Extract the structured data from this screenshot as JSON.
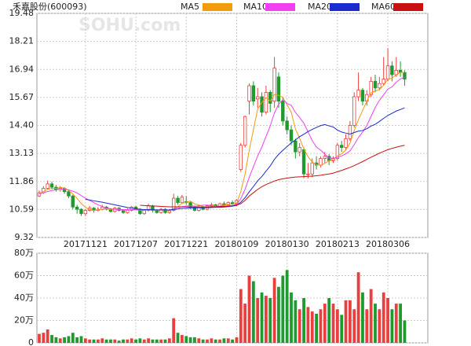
{
  "chart_data": [
    {
      "type": "candlestick",
      "title": "禾嘉股份(600093)",
      "watermark": "SOHU.com",
      "categories": [
        null,
        null,
        null,
        null,
        null,
        null,
        null,
        null,
        null,
        null,
        null,
        "20171121",
        null,
        null,
        null,
        null,
        null,
        null,
        null,
        null,
        null,
        null,
        null,
        "20171207",
        null,
        null,
        null,
        null,
        null,
        null,
        null,
        null,
        null,
        null,
        null,
        "20171221",
        null,
        null,
        null,
        null,
        null,
        null,
        null,
        null,
        null,
        null,
        null,
        "20180109",
        null,
        null,
        null,
        null,
        null,
        null,
        null,
        null,
        null,
        null,
        null,
        "20180130",
        null,
        null,
        null,
        null,
        null,
        null,
        null,
        null,
        null,
        null,
        null,
        "20180213",
        null,
        null,
        null,
        null,
        null,
        null,
        null,
        null,
        null,
        null,
        null,
        "20180306",
        null,
        null,
        null,
        null
      ],
      "open": [
        11.2,
        11.35,
        11.55,
        11.75,
        11.6,
        11.5,
        11.55,
        11.4,
        11.2,
        10.7,
        10.6,
        10.4,
        10.55,
        10.65,
        10.55,
        10.6,
        10.7,
        10.6,
        10.5,
        10.65,
        10.55,
        10.45,
        10.55,
        10.7,
        10.6,
        10.4,
        10.55,
        10.75,
        10.55,
        10.45,
        10.6,
        10.45,
        10.55,
        11.1,
        10.9,
        10.95,
        10.9,
        10.7,
        10.55,
        10.7,
        10.6,
        10.75,
        10.8,
        10.75,
        10.85,
        10.8,
        10.9,
        10.85,
        12.4,
        13.5,
        15.5,
        16.2,
        15.6,
        15.7,
        15.0,
        15.9,
        15.5,
        16.6,
        15.5,
        14.6,
        14.2,
        13.7,
        13.2,
        13.3,
        12.2,
        12.2,
        12.7,
        12.6,
        12.9,
        13.0,
        12.8,
        12.9,
        13.5,
        13.4,
        13.8,
        14.4,
        15.7,
        16.0,
        15.5,
        15.8,
        16.4,
        16.1,
        16.3,
        16.5,
        17.1,
        16.7,
        16.9,
        16.8
      ],
      "high": [
        11.45,
        11.65,
        11.9,
        11.85,
        11.7,
        11.65,
        11.6,
        11.45,
        11.25,
        10.8,
        10.65,
        10.6,
        10.75,
        10.7,
        10.7,
        10.8,
        10.75,
        10.65,
        10.7,
        10.7,
        10.6,
        10.65,
        10.75,
        10.75,
        10.65,
        10.6,
        10.85,
        10.8,
        10.6,
        10.65,
        10.65,
        10.6,
        11.3,
        11.2,
        11.25,
        11.2,
        10.95,
        10.75,
        10.8,
        10.75,
        10.8,
        10.9,
        10.85,
        10.9,
        10.95,
        10.95,
        11.0,
        11.05,
        13.6,
        14.85,
        16.3,
        16.4,
        16.1,
        15.9,
        16.2,
        16.0,
        17.5,
        16.8,
        15.7,
        14.8,
        14.4,
        13.8,
        13.6,
        13.4,
        12.7,
        12.9,
        13.0,
        13.0,
        13.2,
        13.1,
        13.0,
        13.6,
        13.7,
        14.0,
        14.6,
        15.9,
        16.8,
        16.1,
        16.0,
        16.6,
        16.7,
        16.6,
        17.5,
        17.9,
        17.3,
        17.5,
        17.3,
        16.9
      ],
      "low": [
        11.15,
        11.3,
        11.5,
        11.5,
        11.4,
        11.4,
        11.3,
        11.1,
        10.6,
        10.4,
        10.3,
        10.3,
        10.5,
        10.45,
        10.5,
        10.55,
        10.55,
        10.45,
        10.45,
        10.5,
        10.4,
        10.4,
        10.5,
        10.55,
        10.35,
        10.35,
        10.5,
        10.45,
        10.4,
        10.4,
        10.4,
        10.4,
        10.5,
        10.8,
        10.85,
        10.8,
        10.6,
        10.5,
        10.5,
        10.55,
        10.55,
        10.7,
        10.7,
        10.7,
        10.75,
        10.75,
        10.8,
        10.8,
        12.3,
        13.4,
        14.9,
        15.3,
        15.2,
        14.8,
        14.9,
        15.0,
        15.2,
        15.2,
        14.4,
        14.0,
        13.5,
        12.9,
        13.0,
        12.0,
        12.0,
        12.05,
        12.4,
        12.5,
        12.7,
        12.6,
        12.7,
        12.8,
        13.2,
        13.3,
        13.7,
        14.3,
        15.5,
        15.3,
        15.3,
        15.7,
        15.9,
        16.0,
        16.2,
        16.4,
        16.4,
        16.6,
        16.6,
        16.2
      ],
      "close": [
        11.35,
        11.55,
        11.75,
        11.6,
        11.5,
        11.55,
        11.4,
        11.2,
        10.7,
        10.6,
        10.4,
        10.55,
        10.65,
        10.55,
        10.6,
        10.7,
        10.6,
        10.5,
        10.65,
        10.55,
        10.45,
        10.55,
        10.7,
        10.6,
        10.4,
        10.55,
        10.75,
        10.55,
        10.45,
        10.6,
        10.45,
        10.55,
        11.1,
        10.9,
        11.15,
        10.9,
        10.7,
        10.55,
        10.7,
        10.6,
        10.75,
        10.8,
        10.75,
        10.85,
        10.8,
        10.9,
        10.85,
        11.0,
        13.5,
        14.8,
        16.2,
        15.5,
        15.7,
        15.0,
        15.9,
        15.4,
        17.0,
        15.5,
        14.6,
        14.2,
        13.7,
        13.2,
        13.4,
        12.2,
        12.2,
        12.7,
        12.6,
        12.9,
        13.0,
        12.8,
        12.9,
        13.5,
        13.4,
        13.8,
        14.4,
        15.7,
        16.0,
        15.5,
        15.8,
        16.4,
        16.1,
        16.3,
        16.5,
        17.1,
        16.7,
        16.9,
        16.8,
        16.5
      ],
      "up_color": "#e8403f",
      "down_color": "#1e9a2e",
      "series": [
        {
          "name": "MA5",
          "color": "#f29b0c",
          "values": [
            11.3,
            11.4,
            11.5,
            11.55,
            11.55,
            11.59,
            11.56,
            11.45,
            11.29,
            11.09,
            10.86,
            10.69,
            10.58,
            10.55,
            10.56,
            10.61,
            10.62,
            10.59,
            10.61,
            10.6,
            10.56,
            10.55,
            10.58,
            10.57,
            10.55,
            10.56,
            10.6,
            10.57,
            10.54,
            10.58,
            10.56,
            10.52,
            10.63,
            10.72,
            10.87,
            10.92,
            10.97,
            10.84,
            10.8,
            10.71,
            10.66,
            10.68,
            10.72,
            10.75,
            10.79,
            10.82,
            10.83,
            10.88,
            11.41,
            12.19,
            13.27,
            14.2,
            15.14,
            15.44,
            15.66,
            15.5,
            15.8,
            15.76,
            15.68,
            15.34,
            15.0,
            14.24,
            13.82,
            13.34,
            12.98,
            12.74,
            12.62,
            12.6,
            12.68,
            12.8,
            12.84,
            13.02,
            13.12,
            13.28,
            13.6,
            14.16,
            14.66,
            15.08,
            15.5,
            15.88,
            15.96,
            16.02,
            16.22,
            16.48,
            16.54,
            16.7,
            16.8,
            16.8
          ]
        },
        {
          "name": "MA10",
          "color": "#f040f0",
          "values": [
            11.3,
            11.35,
            11.4,
            11.45,
            11.48,
            11.5,
            11.5,
            11.48,
            11.42,
            11.34,
            11.22,
            11.1,
            11.0,
            10.9,
            10.8,
            10.73,
            10.66,
            10.62,
            10.6,
            10.59,
            10.58,
            10.58,
            10.58,
            10.58,
            10.56,
            10.56,
            10.58,
            10.57,
            10.56,
            10.57,
            10.58,
            10.56,
            10.62,
            10.65,
            10.72,
            10.74,
            10.76,
            10.74,
            10.76,
            10.78,
            10.79,
            10.76,
            10.76,
            10.73,
            10.75,
            10.75,
            10.77,
            10.82,
            11.08,
            11.5,
            12.05,
            12.53,
            13.01,
            13.42,
            13.9,
            14.38,
            14.97,
            15.36,
            15.56,
            15.39,
            15.32,
            14.99,
            14.76,
            14.5,
            14.11,
            13.71,
            13.42,
            13.28,
            13.1,
            12.93,
            12.91,
            12.95,
            13.02,
            13.11,
            13.25,
            13.53,
            13.85,
            14.1,
            14.4,
            14.81,
            15.21,
            15.54,
            15.79,
            16.05,
            16.15,
            16.35,
            16.51,
            16.58
          ]
        },
        {
          "name": "MA20",
          "color": "#1a2bd0",
          "values": [
            null,
            null,
            null,
            null,
            null,
            null,
            null,
            null,
            null,
            null,
            null,
            11.05,
            11.02,
            10.98,
            10.95,
            10.92,
            10.88,
            10.84,
            10.8,
            10.76,
            10.72,
            10.68,
            10.65,
            10.62,
            10.6,
            10.58,
            10.58,
            10.58,
            10.57,
            10.57,
            10.57,
            10.57,
            10.59,
            10.61,
            10.64,
            10.65,
            10.66,
            10.66,
            10.67,
            10.67,
            10.68,
            10.68,
            10.69,
            10.69,
            10.7,
            10.72,
            10.74,
            10.77,
            10.92,
            11.12,
            11.39,
            11.63,
            11.89,
            12.08,
            12.33,
            12.56,
            12.86,
            13.09,
            13.27,
            13.44,
            13.61,
            13.74,
            13.89,
            14.0,
            14.12,
            14.22,
            14.31,
            14.39,
            14.44,
            14.38,
            14.33,
            14.19,
            14.1,
            14.05,
            14.01,
            14.08,
            14.14,
            14.17,
            14.25,
            14.37,
            14.45,
            14.58,
            14.72,
            14.85,
            14.95,
            15.05,
            15.12,
            15.2
          ]
        },
        {
          "name": "MA60",
          "color": "#c81010",
          "values": [
            null,
            null,
            null,
            null,
            null,
            null,
            null,
            null,
            null,
            null,
            null,
            null,
            null,
            null,
            null,
            null,
            null,
            null,
            null,
            null,
            null,
            null,
            null,
            null,
            10.78,
            10.77,
            10.76,
            10.75,
            10.74,
            10.73,
            10.72,
            10.71,
            10.71,
            10.71,
            10.71,
            10.71,
            10.7,
            10.7,
            10.7,
            10.7,
            10.7,
            10.71,
            10.71,
            10.72,
            10.73,
            10.74,
            10.76,
            10.79,
            10.85,
            11.0,
            11.2,
            11.35,
            11.5,
            11.62,
            11.72,
            11.8,
            11.88,
            11.94,
            11.98,
            12.01,
            12.04,
            12.06,
            12.07,
            12.08,
            12.09,
            12.1,
            12.12,
            12.14,
            12.17,
            12.2,
            12.24,
            12.3,
            12.36,
            12.43,
            12.5,
            12.58,
            12.67,
            12.76,
            12.86,
            12.96,
            13.05,
            13.14,
            13.22,
            13.3,
            13.36,
            13.41,
            13.46,
            13.5
          ]
        }
      ],
      "ylim": [
        9.32,
        19.48
      ],
      "yticks": [
        19.48,
        18.21,
        16.94,
        15.67,
        {
          "value": 14.4,
          "label": "14.40"
        },
        13.13,
        11.86,
        10.59,
        9.32
      ],
      "grid": true
    },
    {
      "type": "bar",
      "values": [
        8,
        9,
        12,
        7,
        5,
        4,
        5,
        6,
        9,
        5,
        6,
        4,
        3,
        3,
        3,
        4,
        3,
        3,
        3,
        2,
        3,
        3,
        4,
        3,
        4,
        3,
        4,
        3,
        3,
        3,
        3,
        4,
        22,
        9,
        7,
        6,
        5,
        5,
        4,
        3,
        3,
        4,
        3,
        3,
        4,
        4,
        3,
        5,
        48,
        35,
        60,
        55,
        40,
        45,
        42,
        40,
        58,
        50,
        60,
        65,
        45,
        38,
        30,
        40,
        32,
        28,
        26,
        30,
        35,
        40,
        35,
        30,
        25,
        38,
        38,
        30,
        63,
        45,
        30,
        48,
        35,
        30,
        45,
        40,
        30,
        35,
        35,
        20
      ],
      "ylim": [
        0,
        80
      ],
      "yticks": [
        {
          "value": 80,
          "label": "80万"
        },
        {
          "value": 60,
          "label": "60万"
        },
        {
          "value": 40,
          "label": "40万"
        },
        {
          "value": 20,
          "label": "20万"
        },
        0
      ],
      "grid": true
    }
  ]
}
